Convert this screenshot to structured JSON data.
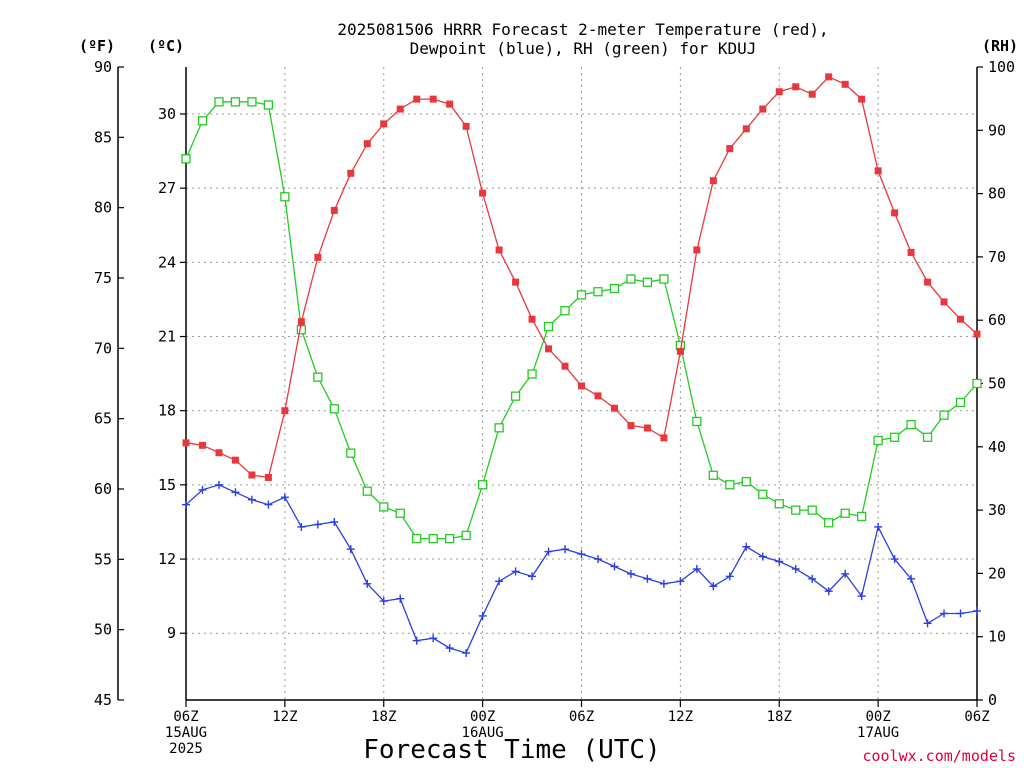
{
  "chart_data": {
    "type": "line",
    "title": "2025081506 HRRR Forecast 2-meter Temperature (red), Dewpoint (blue), RH (green) for KDUJ",
    "title_lines": [
      "2025081506 HRRR Forecast 2-meter Temperature (red),",
      "Dewpoint (blue), RH (green) for KDUJ"
    ],
    "xlabel": "Forecast Time (UTC)",
    "credit": "coolwx.com/models",
    "units": {
      "fahrenheit": "(ºF)",
      "celsius": "(ºC)",
      "rh": "(RH)"
    },
    "x_range_hours": [
      0,
      48
    ],
    "x_ticks": [
      {
        "hour": 0,
        "lines": [
          "06Z",
          "15AUG",
          "2025"
        ]
      },
      {
        "hour": 6,
        "lines": [
          "12Z"
        ]
      },
      {
        "hour": 12,
        "lines": [
          "18Z"
        ]
      },
      {
        "hour": 18,
        "lines": [
          "00Z",
          "16AUG"
        ]
      },
      {
        "hour": 24,
        "lines": [
          "06Z"
        ]
      },
      {
        "hour": 30,
        "lines": [
          "12Z"
        ]
      },
      {
        "hour": 36,
        "lines": [
          "18Z"
        ]
      },
      {
        "hour": 42,
        "lines": [
          "00Z",
          "17AUG"
        ]
      },
      {
        "hour": 48,
        "lines": [
          "06Z"
        ]
      }
    ],
    "y_left_celsius": {
      "range": [
        6.3,
        31.9
      ],
      "ticks": [
        9,
        12,
        15,
        18,
        21,
        24,
        27,
        30
      ]
    },
    "y_left_fahrenheit": {
      "range": [
        45,
        90
      ],
      "ticks": [
        45,
        50,
        55,
        60,
        65,
        70,
        75,
        80,
        85,
        90
      ]
    },
    "y_right_rh": {
      "range": [
        0,
        100
      ],
      "ticks": [
        0,
        10,
        20,
        30,
        40,
        50,
        60,
        70,
        80,
        90,
        100
      ]
    },
    "grid": true,
    "colors": {
      "temperature": "#e8383d",
      "dewpoint": "#2a3fe0",
      "rh": "#22cc22"
    },
    "series": [
      {
        "name": "Temperature",
        "unit": "C",
        "marker": "filled-square",
        "x": [
          0,
          1,
          2,
          3,
          4,
          5,
          6,
          7,
          8,
          9,
          10,
          11,
          12,
          13,
          14,
          15,
          16,
          17,
          18,
          19,
          20,
          21,
          22,
          23,
          24,
          25,
          26,
          27,
          28,
          29,
          30,
          31,
          32,
          33,
          34,
          35,
          36,
          37,
          38,
          39,
          40,
          41,
          42,
          43,
          44,
          45,
          46,
          47,
          48
        ],
        "values": [
          16.7,
          16.6,
          16.3,
          16.0,
          15.4,
          15.3,
          18.0,
          21.6,
          24.2,
          26.1,
          27.6,
          28.8,
          29.6,
          30.2,
          30.6,
          30.6,
          30.4,
          29.5,
          26.8,
          24.5,
          23.2,
          21.7,
          20.5,
          19.8,
          19.0,
          18.6,
          18.1,
          17.4,
          17.3,
          16.9,
          20.4,
          24.5,
          27.3,
          28.6,
          29.4,
          30.2,
          30.9,
          31.1,
          30.8,
          31.5,
          31.2,
          30.6,
          27.7,
          26.0,
          24.4,
          23.2,
          22.4,
          21.7,
          21.1
        ]
      },
      {
        "name": "Dewpoint",
        "unit": "C",
        "marker": "plus",
        "x": [
          0,
          1,
          2,
          3,
          4,
          5,
          6,
          7,
          8,
          9,
          10,
          11,
          12,
          13,
          14,
          15,
          16,
          17,
          18,
          19,
          20,
          21,
          22,
          23,
          24,
          25,
          26,
          27,
          28,
          29,
          30,
          31,
          32,
          33,
          34,
          35,
          36,
          37,
          38,
          39,
          40,
          41,
          42,
          43,
          44,
          45,
          46,
          47,
          48
        ],
        "values": [
          14.2,
          14.8,
          15.0,
          14.7,
          14.4,
          14.2,
          14.5,
          13.3,
          13.4,
          13.5,
          12.4,
          11.0,
          10.3,
          10.4,
          8.7,
          8.8,
          8.4,
          8.2,
          9.7,
          11.1,
          11.5,
          11.3,
          12.3,
          12.4,
          12.2,
          12.0,
          11.7,
          11.4,
          11.2,
          11.0,
          11.1,
          11.6,
          10.9,
          11.3,
          12.5,
          12.1,
          11.9,
          11.6,
          11.2,
          10.7,
          11.4,
          10.5,
          13.3,
          12.0,
          11.2,
          9.4,
          9.8,
          9.8,
          9.9
        ]
      },
      {
        "name": "RH",
        "unit": "%",
        "marker": "open-square",
        "x": [
          0,
          1,
          2,
          3,
          4,
          5,
          6,
          7,
          8,
          9,
          10,
          11,
          12,
          13,
          14,
          15,
          16,
          17,
          18,
          19,
          20,
          21,
          22,
          23,
          24,
          25,
          26,
          27,
          28,
          29,
          30,
          31,
          32,
          33,
          34,
          35,
          36,
          37,
          38,
          39,
          40,
          41,
          42,
          43,
          44,
          45,
          46,
          47,
          48
        ],
        "values": [
          85.5,
          91.5,
          94.5,
          94.5,
          94.5,
          94,
          79.5,
          58.5,
          51,
          46,
          39,
          33,
          30.5,
          29.5,
          25.5,
          25.5,
          25.5,
          26,
          34,
          43,
          48,
          51.5,
          59,
          61.5,
          64,
          64.5,
          65,
          66.5,
          66,
          66.5,
          56,
          44,
          35.5,
          34,
          34.5,
          32.5,
          31,
          30,
          30,
          28,
          29.5,
          29,
          41,
          41.5,
          43.5,
          41.5,
          45,
          47,
          50
        ]
      }
    ]
  }
}
